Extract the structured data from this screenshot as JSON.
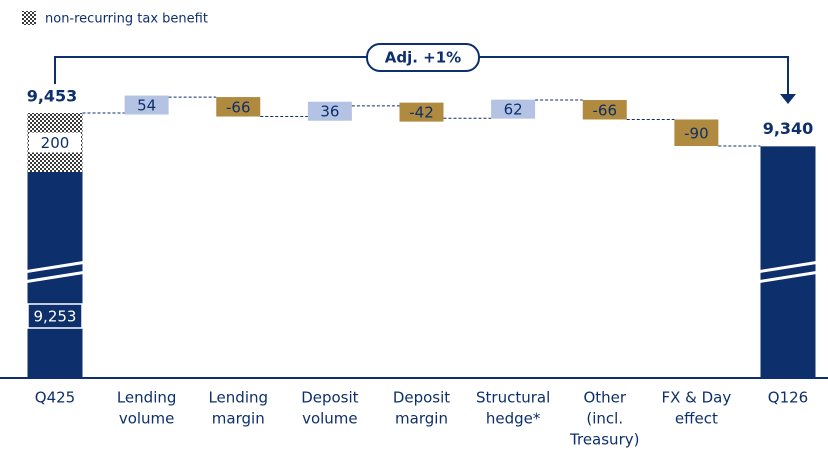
{
  "chart_data": {
    "type": "waterfall",
    "legend_label": "non-recurring tax benefit",
    "annotation": "Adj. +1%",
    "categories": [
      [
        "Q425"
      ],
      [
        "Lending",
        "volume"
      ],
      [
        "Lending",
        "margin"
      ],
      [
        "Deposit",
        "volume"
      ],
      [
        "Deposit",
        "margin"
      ],
      [
        "Structural",
        "hedge*"
      ],
      [
        "Other",
        "(incl.",
        "Treasury)"
      ],
      [
        "FX & Day",
        "effect"
      ],
      [
        "Q126"
      ]
    ],
    "values": [
      9453,
      54,
      -66,
      36,
      -42,
      62,
      -66,
      -90,
      9340
    ],
    "value_labels": [
      "9,453",
      "54",
      "-66",
      "36",
      "-42",
      "62",
      "-66",
      "-90",
      "9,340"
    ],
    "components": {
      "values": [
        9253,
        200
      ],
      "value_labels": [
        "9,253",
        "200"
      ]
    },
    "total_color": "#0d2f6b",
    "positive_color": "#b4c3e3",
    "negative_color": "#b08a3e"
  }
}
